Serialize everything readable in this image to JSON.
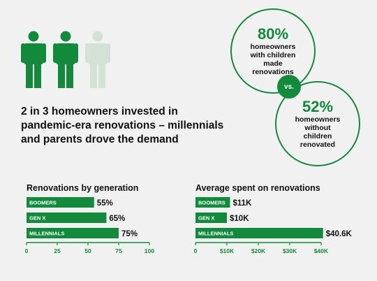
{
  "headline": {
    "lines": [
      "2 in 3 homeowners invested in",
      "pandemic-era renovations – millennials",
      "and parents drove the demand"
    ]
  },
  "people_icons": {
    "filled": 2,
    "total": 3
  },
  "circle_with_children": {
    "value": "80%",
    "lines": [
      "homeowners",
      "with children",
      "made",
      "renovations"
    ]
  },
  "vs_label": "vs.",
  "circle_without_children": {
    "value": "52%",
    "lines": [
      "homeowners",
      "without",
      "children",
      "renovated"
    ]
  },
  "colors": {
    "accent": "#118a3c",
    "accent_light": "#d3e1d7",
    "background": "#f1f1f1"
  },
  "chart_data": [
    {
      "type": "bar",
      "orientation": "horizontal",
      "title": "Renovations by generation",
      "categories": [
        "BOOMERS",
        "GEN X",
        "MILLENNIALS"
      ],
      "values": [
        55,
        65,
        75
      ],
      "value_labels": [
        "55%",
        "65%",
        "75%"
      ],
      "xlim": [
        0,
        100
      ],
      "ticks": [
        0,
        25,
        50,
        75,
        100
      ],
      "tick_labels": [
        "0",
        "25",
        "50",
        "75",
        "100"
      ]
    },
    {
      "type": "bar",
      "orientation": "horizontal",
      "title": "Average spent on renovations",
      "categories": [
        "BOOMERS",
        "GEN X",
        "MILLENNIALS"
      ],
      "values": [
        11,
        10,
        40.6
      ],
      "value_labels": [
        "$11K",
        "$10K",
        "$40.6K"
      ],
      "xlim": [
        0,
        40
      ],
      "ticks": [
        0,
        10,
        20,
        30,
        40
      ],
      "tick_labels": [
        "0",
        "$10K",
        "$20K",
        "$30K",
        "$40K"
      ]
    }
  ]
}
